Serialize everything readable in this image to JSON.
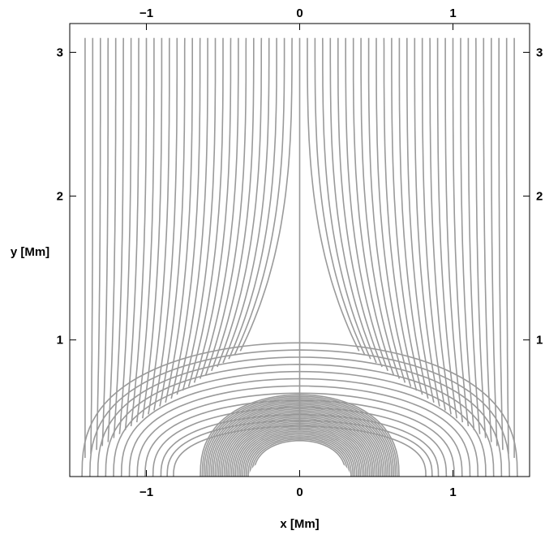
{
  "chart_data": {
    "type": "line",
    "title": "",
    "xlabel": "x [Mm]",
    "ylabel": "y [Mm]",
    "xlim": [
      -1.5,
      1.5
    ],
    "ylim": [
      0.05,
      3.2
    ],
    "x_ticks": [
      {
        "value": -1,
        "label": "−1"
      },
      {
        "value": 0,
        "label": "0"
      },
      {
        "value": 1,
        "label": "1"
      }
    ],
    "y_ticks": [
      {
        "value": 1,
        "label": "1"
      },
      {
        "value": 2,
        "label": "2"
      },
      {
        "value": 3,
        "label": "3"
      }
    ],
    "grid": false,
    "legend": "none",
    "line_color": "#9a9a9a",
    "description": "",
    "field": {
      "separatrix_height": 1.0,
      "top_of_lines": 3.1,
      "x_extent": [
        -1.4,
        1.4
      ],
      "open_line_footpoints": [
        -1.4,
        -1.35,
        -1.3,
        -1.25,
        -1.2,
        -1.15,
        -1.1,
        -1.05,
        -1.0,
        -0.95,
        -0.9,
        -0.85,
        -0.8,
        -0.75,
        -0.7,
        -0.65,
        -0.6,
        -0.55,
        -0.5,
        -0.45,
        -0.4,
        -0.35,
        -0.3,
        -0.25,
        -0.2,
        -0.15,
        -0.1,
        -0.05,
        0.05,
        0.1,
        0.15,
        0.2,
        0.25,
        0.3,
        0.35,
        0.4,
        0.45,
        0.5,
        0.55,
        0.6,
        0.65,
        0.7,
        0.75,
        0.8,
        0.85,
        0.9,
        0.95,
        1.0,
        1.05,
        1.1,
        1.15,
        1.2,
        1.25,
        1.3,
        1.35,
        1.4
      ],
      "closed_loop_apex_heights": [
        0.98,
        0.93,
        0.88,
        0.83,
        0.78,
        0.73,
        0.68,
        0.63,
        0.58,
        0.53,
        0.48,
        0.44,
        0.4
      ],
      "dense_region_top": 0.4
    }
  }
}
